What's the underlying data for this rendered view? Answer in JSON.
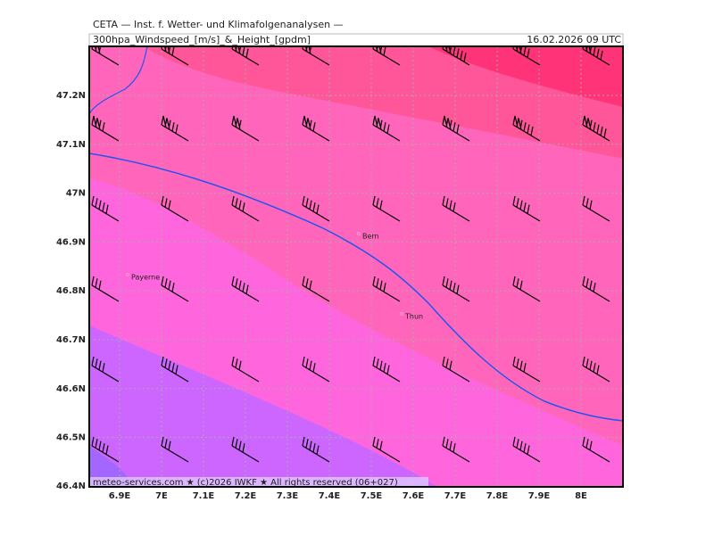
{
  "header": {
    "title": "CETA — Inst. f. Wetter- und Klimafolgenanalysen —",
    "subtitle": "300hpa_Windspeed_[m/s]_&_Height_[gpdm]",
    "date": "16.02.2026 09 UTC"
  },
  "map": {
    "lat_labels": [
      "47.2N",
      "47.1N",
      "47N",
      "46.9N",
      "46.8N",
      "46.7N",
      "46.6N",
      "46.5N",
      "46.4N"
    ],
    "lon_labels": [
      "6.9E",
      "7E",
      "7.1E",
      "7.2E",
      "7.3E",
      "7.4E",
      "7.5E",
      "7.6E",
      "7.7E",
      "7.8E",
      "7.9E",
      "8E"
    ],
    "cities": [
      {
        "name": "Bern"
      },
      {
        "name": "Payerne"
      },
      {
        "name": "Thun"
      }
    ],
    "footer": "meteo-services.com ★ (c)2026 IWKF ★ All rights reserved (06+027)"
  }
}
